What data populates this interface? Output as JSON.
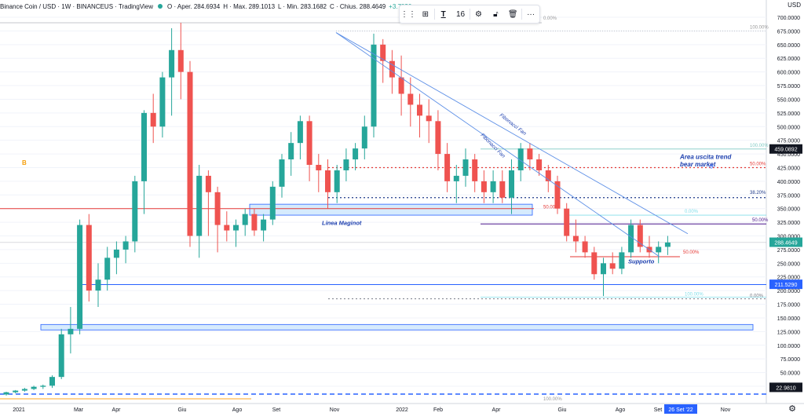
{
  "header": {
    "title": "Binance Coin / USD · 1W · BINANCEUS · TradingView",
    "ohlc": {
      "o": "O · Aper. 284.6934",
      "h": "H · Max. 289.1013",
      "l": "L · Min. 283.1682",
      "c": "C · Chius. 288.4649",
      "chg": "+3.7830"
    }
  },
  "toolbar": {
    "font_size": "16"
  },
  "axis": {
    "currency": "USD",
    "ticks": [
      "700.0000",
      "675.0000",
      "650.0000",
      "625.0000",
      "600.0000",
      "575.0000",
      "550.0000",
      "525.0000",
      "500.0000",
      "475.0000",
      "450.0000",
      "425.0000",
      "400.0000",
      "375.0000",
      "350.0000",
      "325.0000",
      "300.0000",
      "275.0000",
      "250.0000",
      "225.0000",
      "200.0000",
      "175.0000",
      "150.0000",
      "125.0000",
      "100.0000",
      "75.0000",
      "50.0000",
      "25.0000"
    ],
    "price_labels": {
      "top": "459.0892",
      "last": "288.4649",
      "mid": "211.5290",
      "low": "22.9810"
    },
    "time_labels": [
      "2021",
      "Mar",
      "Apr",
      "Giu",
      "Ago",
      "Set",
      "Nov",
      "2022",
      "Feb",
      "Apr",
      "Giu",
      "Ago",
      "Set",
      "Nov"
    ],
    "time_cursor": "26 Set '22"
  },
  "annotations": {
    "b_label": "B",
    "maginot": "Linea Maginot",
    "supporto": "Supporto",
    "area_uscita": "Area uscita trend",
    "bear_market": "bear market",
    "fan1": "Fibonacci Fan",
    "fan2": "Fibonacci Fan",
    "fib_0_top": "0.00%",
    "fib_100_top": "100.00%",
    "fib_100_right": "100.00%",
    "fib_50_red": "50.00%",
    "fib_38": "38.20%",
    "fib_50_mid": "50.00%",
    "fib_0_mid": "0.00%",
    "fib_50_right": "50.00%",
    "fib_50_low": "50.00%",
    "fib_100_bottom": "100.00%",
    "fib_0_bottom": "0.00%",
    "fib_100_axis": "100.00%"
  },
  "colors": {
    "up": "#26a69a",
    "down": "#ef5350",
    "blue": "#2962ff",
    "fan": "#5b8ee6"
  },
  "chart_data": {
    "type": "candlestick",
    "symbol": "BNB/USD",
    "timeframe": "1W",
    "ylim": [
      0,
      710
    ],
    "candles": [
      [
        1,
        10,
        15,
        8,
        14
      ],
      [
        2,
        14,
        18,
        12,
        17
      ],
      [
        3,
        17,
        22,
        15,
        20
      ],
      [
        4,
        20,
        26,
        18,
        24
      ],
      [
        5,
        24,
        28,
        20,
        26
      ],
      [
        6,
        26,
        45,
        22,
        42
      ],
      [
        7,
        42,
        130,
        38,
        120
      ],
      [
        8,
        120,
        170,
        85,
        130
      ],
      [
        9,
        130,
        330,
        120,
        320
      ],
      [
        10,
        320,
        340,
        180,
        200
      ],
      [
        11,
        200,
        250,
        170,
        220
      ],
      [
        12,
        220,
        280,
        200,
        260
      ],
      [
        13,
        260,
        290,
        230,
        275
      ],
      [
        14,
        275,
        300,
        250,
        290
      ],
      [
        15,
        290,
        410,
        270,
        400
      ],
      [
        16,
        400,
        530,
        340,
        525
      ],
      [
        17,
        525,
        560,
        470,
        500
      ],
      [
        18,
        500,
        600,
        480,
        590
      ],
      [
        19,
        590,
        680,
        520,
        640
      ],
      [
        20,
        640,
        690,
        550,
        600
      ],
      [
        21,
        600,
        620,
        280,
        300
      ],
      [
        22,
        300,
        430,
        260,
        410
      ],
      [
        23,
        410,
        420,
        300,
        380
      ],
      [
        24,
        380,
        390,
        270,
        320
      ],
      [
        25,
        320,
        345,
        290,
        310
      ],
      [
        26,
        310,
        330,
        280,
        320
      ],
      [
        27,
        320,
        350,
        300,
        340
      ],
      [
        28,
        340,
        350,
        300,
        310
      ],
      [
        29,
        310,
        340,
        290,
        330
      ],
      [
        30,
        330,
        400,
        320,
        390
      ],
      [
        31,
        390,
        450,
        370,
        440
      ],
      [
        32,
        440,
        490,
        410,
        470
      ],
      [
        33,
        470,
        520,
        440,
        510
      ],
      [
        34,
        510,
        520,
        400,
        430
      ],
      [
        35,
        430,
        450,
        380,
        420
      ],
      [
        36,
        420,
        440,
        350,
        380
      ],
      [
        37,
        380,
        430,
        360,
        420
      ],
      [
        38,
        420,
        460,
        400,
        440
      ],
      [
        39,
        440,
        470,
        420,
        460
      ],
      [
        40,
        460,
        520,
        440,
        500
      ],
      [
        41,
        500,
        670,
        480,
        650
      ],
      [
        42,
        650,
        660,
        580,
        620
      ],
      [
        43,
        620,
        640,
        560,
        590
      ],
      [
        44,
        590,
        630,
        520,
        560
      ],
      [
        45,
        560,
        590,
        500,
        540
      ],
      [
        46,
        540,
        560,
        480,
        520
      ],
      [
        47,
        520,
        550,
        470,
        510
      ],
      [
        48,
        510,
        530,
        420,
        450
      ],
      [
        49,
        450,
        470,
        380,
        400
      ],
      [
        50,
        400,
        430,
        360,
        410
      ],
      [
        51,
        410,
        460,
        390,
        440
      ],
      [
        52,
        440,
        450,
        380,
        400
      ],
      [
        53,
        400,
        420,
        360,
        380
      ],
      [
        54,
        380,
        420,
        360,
        400
      ],
      [
        55,
        400,
        420,
        360,
        370
      ],
      [
        56,
        370,
        440,
        340,
        420
      ],
      [
        57,
        420,
        470,
        400,
        460
      ],
      [
        58,
        460,
        470,
        420,
        440
      ],
      [
        59,
        440,
        450,
        410,
        420
      ],
      [
        60,
        420,
        430,
        380,
        400
      ],
      [
        61,
        400,
        410,
        340,
        350
      ],
      [
        62,
        350,
        360,
        290,
        300
      ],
      [
        63,
        300,
        330,
        270,
        290
      ],
      [
        64,
        290,
        300,
        260,
        270
      ],
      [
        65,
        270,
        280,
        220,
        230
      ],
      [
        66,
        230,
        260,
        190,
        250
      ],
      [
        67,
        250,
        270,
        230,
        240
      ],
      [
        68,
        240,
        280,
        230,
        270
      ],
      [
        69,
        270,
        330,
        260,
        320
      ],
      [
        70,
        320,
        330,
        270,
        280
      ],
      [
        71,
        280,
        300,
        260,
        270
      ],
      [
        72,
        270,
        290,
        250,
        280
      ],
      [
        73,
        280,
        300,
        265,
        288
      ]
    ]
  }
}
